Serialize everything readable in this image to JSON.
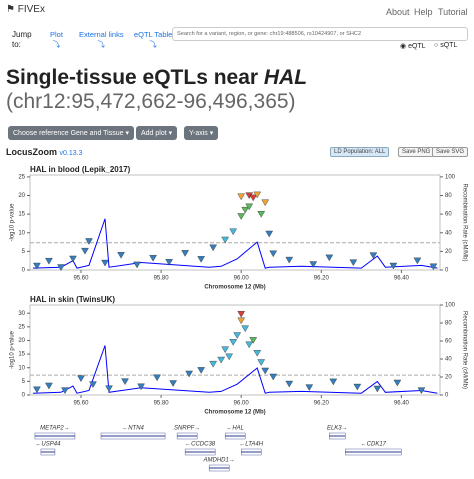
{
  "header": {
    "logo": "FIVEx",
    "nav": [
      "About",
      "Help",
      "Tutorial"
    ]
  },
  "jump": {
    "label": "Jump to:",
    "links": [
      "Plot",
      "External links",
      "eQTL Table"
    ]
  },
  "search": {
    "placeholder": "Search for a variant, region, or gene: chr19:488506, rs10424907, or SHC2",
    "options": [
      "eQTL",
      "sQTL"
    ]
  },
  "page_title": {
    "text": "Single-tissue eQTLs near ",
    "gene": "HAL",
    "region": "(chr12:95,472,662-96,496,365)"
  },
  "controls": [
    "Choose reference Gene and Tissue",
    "Add plot",
    "Y-axis"
  ],
  "locuszoom": {
    "name": "LocusZoom",
    "version": "v0.13.3",
    "buttons": [
      "LD Population: ALL",
      "Save PNG",
      "Save SVG"
    ]
  },
  "chart_data": [
    {
      "type": "scatter",
      "title": "HAL in blood (Lepik_2017)",
      "xlabel": "Chromosome 12 (Mb)",
      "ylabel": "-log10 p-value",
      "y2label": "Recombination Rate (cM/Mb)",
      "xlim": [
        95.4727,
        96.4964
      ],
      "xticks": [
        {
          "value": 95.6,
          "label": "95.60"
        },
        {
          "value": 95.8,
          "label": "95.80"
        },
        {
          "value": 96.0,
          "label": "96.00"
        },
        {
          "value": 96.2,
          "label": "96.20"
        },
        {
          "value": 96.4,
          "label": "96.40"
        }
      ],
      "ylim": [
        0,
        25.5
      ],
      "yticks": [
        0,
        5,
        10,
        15,
        20,
        25
      ],
      "y2lim": [
        0,
        102
      ],
      "y2ticks": [
        0,
        20,
        40,
        60,
        80,
        100
      ],
      "significance_line": 7.3,
      "x": [
        95.49,
        95.52,
        95.55,
        95.58,
        95.61,
        95.62,
        95.66,
        95.7,
        95.74,
        95.78,
        95.82,
        95.86,
        95.9,
        95.93,
        95.96,
        95.98,
        96.0,
        96.01,
        96.02,
        96.0,
        96.02,
        96.03,
        96.04,
        96.06,
        96.05,
        96.07,
        96.08,
        96.12,
        96.18,
        96.22,
        96.28,
        96.33,
        96.38,
        96.44,
        96.48
      ],
      "values": [
        1.2,
        2.5,
        0.8,
        3.1,
        5.2,
        7.8,
        2.0,
        4.1,
        1.5,
        3.3,
        2.2,
        4.6,
        3.0,
        6.1,
        8.2,
        10.4,
        14.5,
        16.2,
        17.1,
        19.8,
        20.1,
        19.5,
        20.3,
        18.2,
        15.1,
        9.8,
        4.5,
        2.8,
        1.6,
        3.4,
        2.1,
        4.0,
        1.2,
        2.6,
        1.0
      ],
      "colors": [
        "#357ebd",
        "#357ebd",
        "#357ebd",
        "#357ebd",
        "#357ebd",
        "#357ebd",
        "#357ebd",
        "#357ebd",
        "#357ebd",
        "#357ebd",
        "#357ebd",
        "#357ebd",
        "#357ebd",
        "#357ebd",
        "#46b8da",
        "#46b8da",
        "#5cb85c",
        "#5cb85c",
        "#5cb85c",
        "#eea236",
        "#d43f3a",
        "#d43f3a",
        "#eea236",
        "#eea236",
        "#5cb85c",
        "#357ebd",
        "#357ebd",
        "#357ebd",
        "#357ebd",
        "#357ebd",
        "#357ebd",
        "#357ebd",
        "#357ebd",
        "#357ebd",
        "#357ebd"
      ],
      "recombination": {
        "axis": "y2",
        "color": "#0000ff",
        "x": [
          95.48,
          95.55,
          95.58,
          95.59,
          95.62,
          95.66,
          95.67,
          95.75,
          95.92,
          95.95,
          95.99,
          96.04,
          96.06,
          96.07,
          96.15,
          96.3,
          96.34,
          96.36,
          96.45,
          96.49
        ],
        "values": [
          2,
          3,
          10,
          2,
          5,
          55,
          3,
          8,
          3,
          4,
          12,
          30,
          2,
          3,
          4,
          2,
          15,
          3,
          5,
          2
        ]
      }
    },
    {
      "type": "scatter",
      "title": "HAL in skin (TwinsUK)",
      "xlabel": "Chromosome 12 (Mb)",
      "ylabel": "-log10 p-value",
      "y2label": "Recombination Rate (cM/Mb)",
      "xlim": [
        95.4727,
        96.4964
      ],
      "xticks": [
        {
          "value": 95.6,
          "label": "95.60"
        },
        {
          "value": 95.8,
          "label": "95.80"
        },
        {
          "value": 96.0,
          "label": "96.00"
        },
        {
          "value": 96.2,
          "label": "96.20"
        },
        {
          "value": 96.4,
          "label": "96.40"
        }
      ],
      "ylim": [
        0,
        33
      ],
      "yticks": [
        0,
        5,
        10,
        15,
        20,
        25,
        30
      ],
      "y2lim": [
        0,
        100
      ],
      "y2ticks": [
        0,
        20,
        40,
        60,
        80,
        100
      ],
      "significance_line": 7.3,
      "x": [
        95.49,
        95.52,
        95.56,
        95.6,
        95.63,
        95.67,
        95.71,
        95.75,
        95.79,
        95.83,
        95.87,
        95.9,
        95.93,
        95.95,
        95.96,
        95.97,
        95.98,
        95.99,
        96.0,
        96.0,
        96.01,
        96.02,
        96.03,
        96.04,
        96.05,
        96.06,
        96.08,
        96.12,
        96.17,
        96.23,
        96.29,
        96.34,
        96.39,
        96.45
      ],
      "values": [
        2.1,
        3.5,
        1.8,
        6.2,
        4.0,
        2.5,
        5.1,
        3.2,
        6.5,
        4.4,
        7.9,
        9.2,
        11.5,
        13.0,
        16.8,
        14.2,
        19.5,
        22.0,
        27.4,
        29.8,
        24.5,
        18.6,
        20.2,
        15.5,
        12.1,
        9.0,
        6.8,
        4.2,
        2.9,
        5.0,
        3.1,
        2.4,
        4.6,
        1.8
      ],
      "colors": [
        "#357ebd",
        "#357ebd",
        "#357ebd",
        "#357ebd",
        "#357ebd",
        "#357ebd",
        "#357ebd",
        "#357ebd",
        "#357ebd",
        "#357ebd",
        "#357ebd",
        "#357ebd",
        "#46b8da",
        "#46b8da",
        "#46b8da",
        "#46b8da",
        "#46b8da",
        "#46b8da",
        "#eea236",
        "#d43f3a",
        "#46b8da",
        "#46b8da",
        "#5cb85c",
        "#46b8da",
        "#46b8da",
        "#357ebd",
        "#357ebd",
        "#357ebd",
        "#357ebd",
        "#357ebd",
        "#357ebd",
        "#357ebd",
        "#357ebd",
        "#357ebd"
      ],
      "recombination": {
        "axis": "y2",
        "color": "#0000ff",
        "x": [
          95.48,
          95.55,
          95.58,
          95.59,
          95.62,
          95.66,
          95.67,
          95.75,
          95.92,
          95.95,
          95.99,
          96.04,
          96.06,
          96.07,
          96.15,
          96.3,
          96.34,
          96.36,
          96.45,
          96.49
        ],
        "values": [
          2,
          3,
          10,
          2,
          5,
          55,
          3,
          8,
          3,
          4,
          12,
          30,
          2,
          3,
          4,
          2,
          15,
          3,
          5,
          2
        ]
      }
    }
  ],
  "genes": [
    {
      "label": "METAP2→",
      "start": 95.485,
      "end": 95.585
    },
    {
      "label": "←USP44",
      "start": 95.5,
      "end": 95.535
    },
    {
      "label": "←NTN4",
      "start": 95.65,
      "end": 95.81
    },
    {
      "label": "SNRPF→",
      "start": 95.84,
      "end": 95.89
    },
    {
      "label": "←CCDC38",
      "start": 95.86,
      "end": 95.935
    },
    {
      "label": "←HAL",
      "start": 95.96,
      "end": 96.01
    },
    {
      "label": "←LTA4H",
      "start": 96.0,
      "end": 96.05
    },
    {
      "label": "AMDHD1→",
      "start": 95.92,
      "end": 95.97
    },
    {
      "label": "ELK3→",
      "start": 96.22,
      "end": 96.26
    },
    {
      "label": "←CDK17",
      "start": 96.26,
      "end": 96.4
    }
  ]
}
